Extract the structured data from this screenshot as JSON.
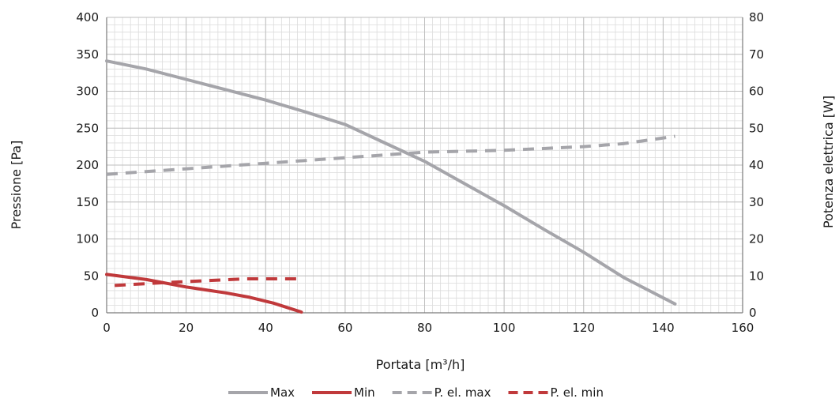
{
  "chart_data": {
    "type": "line",
    "title": "",
    "xlabel": "Portata [m³/h]",
    "ylabel": "Pressione [Pa]",
    "y2label": "Potenza elettrica [W]",
    "xlim": [
      0,
      160
    ],
    "ylim": [
      0,
      400
    ],
    "y2lim": [
      0,
      80
    ],
    "x_ticks": [
      "0",
      "20",
      "40",
      "60",
      "80",
      "100",
      "120",
      "140",
      "160"
    ],
    "y_ticks": [
      "0",
      "50",
      "100",
      "150",
      "200",
      "250",
      "300",
      "350",
      "400"
    ],
    "y2_ticks": [
      "0",
      "10",
      "20",
      "30",
      "40",
      "50",
      "60",
      "70",
      "80"
    ],
    "grid": true,
    "legend_position": "bottom",
    "series": [
      {
        "name": "Max",
        "axis": "left",
        "style": "solid",
        "color": "#a5a5aa",
        "points": [
          [
            0,
            341
          ],
          [
            10,
            330
          ],
          [
            20,
            316
          ],
          [
            30,
            302
          ],
          [
            40,
            288
          ],
          [
            50,
            272
          ],
          [
            60,
            255
          ],
          [
            70,
            230
          ],
          [
            80,
            205
          ],
          [
            90,
            175
          ],
          [
            100,
            145
          ],
          [
            110,
            113
          ],
          [
            120,
            82
          ],
          [
            130,
            48
          ],
          [
            143,
            12
          ]
        ]
      },
      {
        "name": "Min",
        "axis": "left",
        "style": "solid",
        "color": "#c0393b",
        "points": [
          [
            0,
            52
          ],
          [
            10,
            45
          ],
          [
            20,
            35
          ],
          [
            30,
            27
          ],
          [
            36,
            21
          ],
          [
            42,
            13
          ],
          [
            49,
            1
          ]
        ]
      },
      {
        "name": "P. el. max",
        "axis": "right",
        "style": "dashed",
        "color": "#a5a5aa",
        "points": [
          [
            0,
            37.5
          ],
          [
            20,
            39
          ],
          [
            40,
            40.5
          ],
          [
            60,
            42
          ],
          [
            80,
            43.5
          ],
          [
            100,
            44
          ],
          [
            120,
            45
          ],
          [
            130,
            45.8
          ],
          [
            143,
            47.8
          ]
        ]
      },
      {
        "name": "P. el. min",
        "axis": "right",
        "style": "dashed",
        "color": "#c0393b",
        "points": [
          [
            2,
            7.4
          ],
          [
            15,
            8.2
          ],
          [
            25,
            8.7
          ],
          [
            35,
            9.2
          ],
          [
            49,
            9.2
          ]
        ]
      }
    ]
  }
}
